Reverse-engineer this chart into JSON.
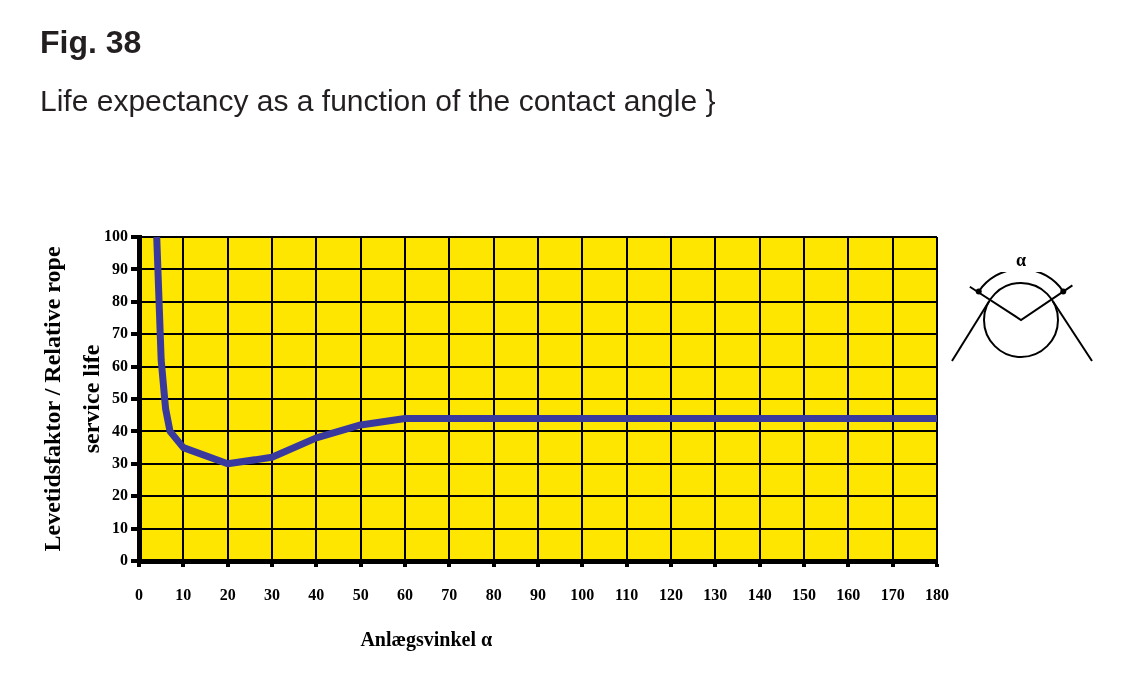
{
  "chart_data": {
    "type": "line",
    "title": "Fig. 38",
    "subtitle": "Life expectancy as a function of the contact angle }",
    "xlabel": "Anlægsvinkel α",
    "ylabel": "Levetidsfaktor / Relative rope service life",
    "annotations": [
      "α"
    ],
    "x": [
      4,
      5,
      6,
      7,
      10,
      20,
      30,
      40,
      50,
      60,
      180
    ],
    "series": [
      {
        "color": "#3a3a9e",
        "values": [
          100,
          62,
          47,
          40,
          35,
          30,
          32,
          38,
          42,
          44,
          44
        ]
      }
    ],
    "xlim": [
      0,
      180
    ],
    "xticks": [
      0,
      10,
      20,
      30,
      40,
      50,
      60,
      70,
      80,
      90,
      100,
      110,
      120,
      130,
      140,
      150,
      160,
      170,
      180
    ],
    "ylim": [
      0,
      100
    ],
    "yticks": [
      0,
      10,
      20,
      30,
      40,
      50,
      60,
      70,
      80,
      90,
      100
    ],
    "grid": true,
    "marker": "none",
    "line_style": "solid"
  }
}
